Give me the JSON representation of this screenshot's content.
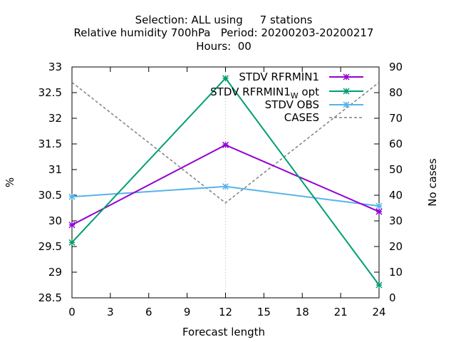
{
  "chart_data": {
    "type": "line",
    "title_lines": [
      "Selection: ALL using     7 stations",
      "Relative humidity 700hPa   Period: 20200203-20200217",
      "Hours:  00"
    ],
    "xlabel": "Forecast length",
    "ylabel": "%",
    "y2label": "No cases",
    "x": [
      0,
      12,
      24
    ],
    "xlim": [
      0,
      24
    ],
    "xticks": [
      0,
      3,
      6,
      9,
      12,
      15,
      18,
      21,
      24
    ],
    "ylim": [
      28.5,
      33
    ],
    "yticks": [
      28.5,
      29,
      29.5,
      30,
      30.5,
      31,
      31.5,
      32,
      32.5,
      33
    ],
    "y2lim": [
      0,
      90
    ],
    "y2ticks": [
      0,
      10,
      20,
      30,
      40,
      50,
      60,
      70,
      80,
      90
    ],
    "legend_position": "top-right",
    "series": [
      {
        "name": "STDV RFRMIN1",
        "axis": "y",
        "color": "#9400d3",
        "marker": "x",
        "values": [
          29.92,
          31.48,
          30.18
        ]
      },
      {
        "name_main": "STDV RFRMIN1",
        "name_sub": "W",
        "name_tail": " opt",
        "axis": "y",
        "color": "#009e73",
        "marker": "x",
        "values": [
          29.58,
          32.78,
          28.75
        ]
      },
      {
        "name": "STDV OBS",
        "axis": "y",
        "color": "#56b4e9",
        "marker": "x",
        "values": [
          30.47,
          30.67,
          30.29
        ]
      },
      {
        "name": "CASES",
        "axis": "y2",
        "color": "#808080",
        "dashed": true,
        "values": [
          84,
          37,
          84
        ]
      }
    ]
  }
}
